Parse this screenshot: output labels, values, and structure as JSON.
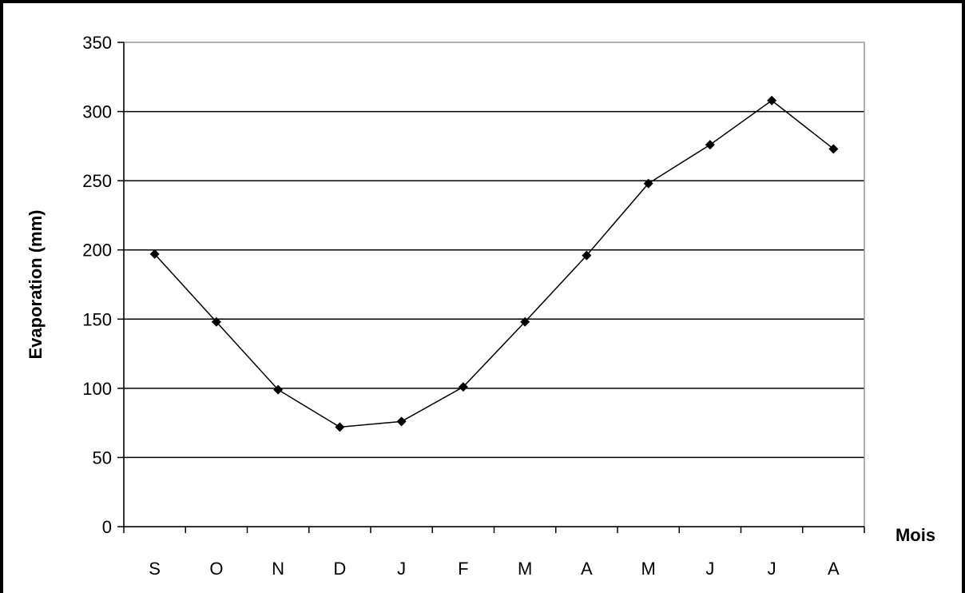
{
  "chart_data": {
    "type": "line",
    "title": "",
    "xlabel": "Mois",
    "ylabel": "Evaporation (mm)",
    "categories": [
      "S",
      "O",
      "N",
      "D",
      "J",
      "F",
      "M",
      "A",
      "M",
      "J",
      "J",
      "A"
    ],
    "series": [
      {
        "values": [
          197,
          148,
          99,
          72,
          76,
          101,
          148,
          196,
          248,
          276,
          308,
          273
        ]
      }
    ],
    "ylim": [
      0,
      350
    ],
    "yticks": [
      0,
      50,
      100,
      150,
      200,
      250,
      300,
      350
    ],
    "grid": "horizontal",
    "legend": "none",
    "line_color": "#000000",
    "marker": "diamond"
  }
}
